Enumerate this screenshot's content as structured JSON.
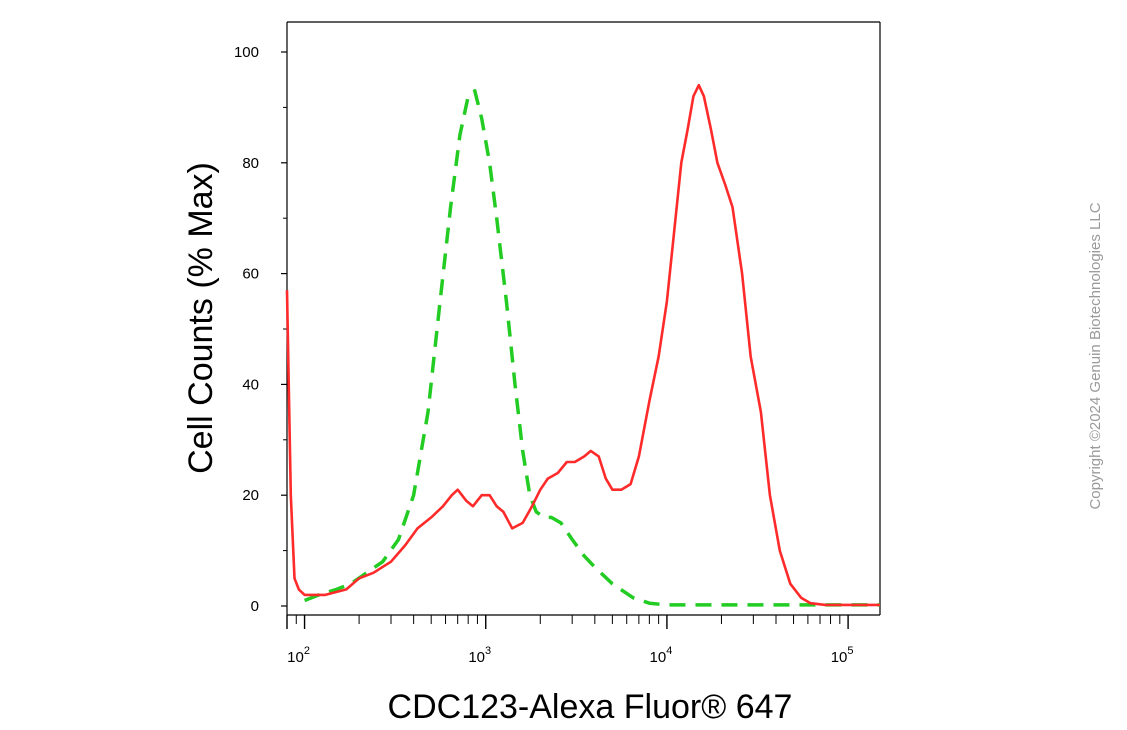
{
  "chart_data": {
    "type": "line",
    "xlabel": "CDC123-Alexa Fluor® 647",
    "ylabel": "Cell Counts (% Max)",
    "x_scale": "log",
    "xlim": [
      80,
      150000
    ],
    "ylim": [
      0,
      100
    ],
    "y_ticks": [
      0,
      20,
      40,
      60,
      80,
      100
    ],
    "y_tick_labels": [
      "0",
      "20",
      "40",
      "60",
      "80",
      "100"
    ],
    "x_ticks": [
      {
        "base": "10",
        "exp": "2",
        "value": 100
      },
      {
        "base": "10",
        "exp": "3",
        "value": 1000
      },
      {
        "base": "10",
        "exp": "4",
        "value": 10000
      },
      {
        "base": "10",
        "exp": "5",
        "value": 100000
      }
    ],
    "grid": false,
    "series": [
      {
        "style": "dashed",
        "color": "#22cc22",
        "points": [
          [
            100,
            1
          ],
          [
            120,
            2
          ],
          [
            150,
            3
          ],
          [
            180,
            4
          ],
          [
            220,
            6
          ],
          [
            270,
            8
          ],
          [
            330,
            12
          ],
          [
            400,
            20
          ],
          [
            480,
            35
          ],
          [
            560,
            55
          ],
          [
            640,
            72
          ],
          [
            720,
            85
          ],
          [
            800,
            92
          ],
          [
            870,
            93
          ],
          [
            950,
            88
          ],
          [
            1050,
            80
          ],
          [
            1150,
            70
          ],
          [
            1300,
            55
          ],
          [
            1450,
            40
          ],
          [
            1600,
            28
          ],
          [
            1750,
            20
          ],
          [
            1900,
            17
          ],
          [
            2100,
            16
          ],
          [
            2300,
            16
          ],
          [
            2600,
            15
          ],
          [
            3000,
            12
          ],
          [
            3500,
            9
          ],
          [
            4000,
            7
          ],
          [
            5000,
            4
          ],
          [
            6500,
            1.5
          ],
          [
            8000,
            0.5
          ],
          [
            10000,
            0.2
          ],
          [
            30000,
            0.2
          ],
          [
            150000,
            0.2
          ]
        ]
      },
      {
        "style": "solid",
        "color": "#ff2a2a",
        "points": [
          [
            80,
            57
          ],
          [
            84,
            20
          ],
          [
            88,
            5
          ],
          [
            93,
            3
          ],
          [
            100,
            2
          ],
          [
            130,
            2
          ],
          [
            170,
            3
          ],
          [
            200,
            5
          ],
          [
            240,
            6
          ],
          [
            300,
            8
          ],
          [
            360,
            11
          ],
          [
            420,
            14
          ],
          [
            500,
            16
          ],
          [
            580,
            18
          ],
          [
            650,
            20
          ],
          [
            700,
            21
          ],
          [
            780,
            19
          ],
          [
            850,
            18
          ],
          [
            950,
            20
          ],
          [
            1050,
            20
          ],
          [
            1150,
            18
          ],
          [
            1250,
            17
          ],
          [
            1400,
            14
          ],
          [
            1600,
            15
          ],
          [
            1800,
            18
          ],
          [
            2000,
            21
          ],
          [
            2200,
            23
          ],
          [
            2500,
            24
          ],
          [
            2800,
            26
          ],
          [
            3100,
            26
          ],
          [
            3500,
            27
          ],
          [
            3800,
            28
          ],
          [
            4200,
            27
          ],
          [
            4600,
            23
          ],
          [
            5000,
            21
          ],
          [
            5600,
            21
          ],
          [
            6300,
            22
          ],
          [
            7000,
            27
          ],
          [
            8000,
            37
          ],
          [
            9000,
            45
          ],
          [
            10000,
            55
          ],
          [
            11000,
            68
          ],
          [
            12000,
            80
          ],
          [
            13000,
            86
          ],
          [
            14000,
            92
          ],
          [
            15000,
            94
          ],
          [
            16000,
            92
          ],
          [
            17500,
            86
          ],
          [
            19000,
            80
          ],
          [
            21000,
            76
          ],
          [
            23000,
            72
          ],
          [
            26000,
            60
          ],
          [
            29000,
            45
          ],
          [
            33000,
            35
          ],
          [
            37000,
            20
          ],
          [
            42000,
            10
          ],
          [
            48000,
            4
          ],
          [
            55000,
            1.5
          ],
          [
            62000,
            0.5
          ],
          [
            75000,
            0.2
          ],
          [
            150000,
            0.2
          ]
        ]
      }
    ]
  },
  "watermark": "Copyright ©2024 Genuin Biotechnologies LLC"
}
